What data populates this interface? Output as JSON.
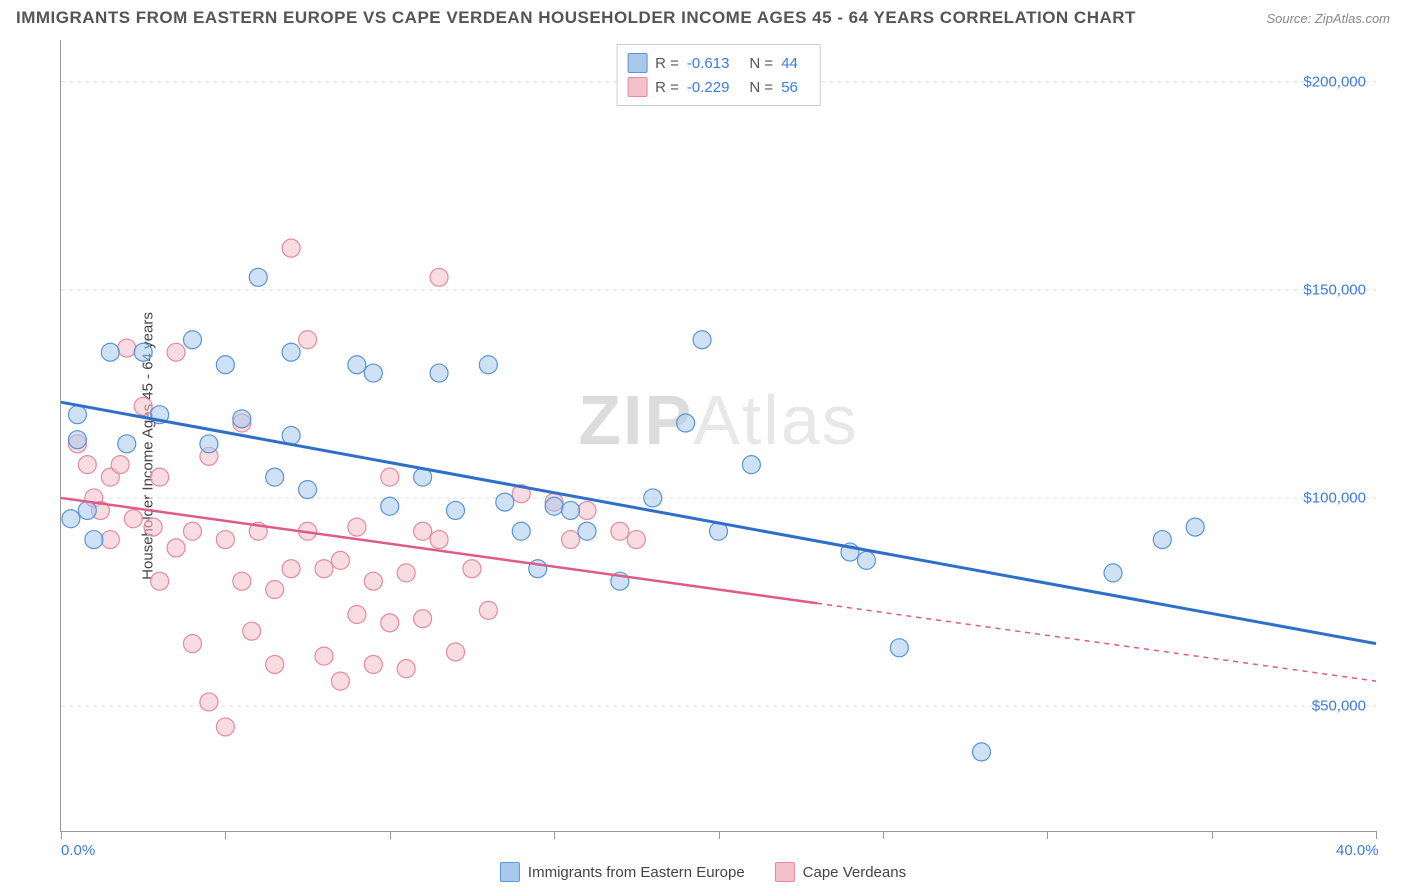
{
  "title": "IMMIGRANTS FROM EASTERN EUROPE VS CAPE VERDEAN HOUSEHOLDER INCOME AGES 45 - 64 YEARS CORRELATION CHART",
  "source": "Source: ZipAtlas.com",
  "y_axis_label": "Householder Income Ages 45 - 64 years",
  "watermark": {
    "zip": "ZIP",
    "atlas": "Atlas"
  },
  "chart": {
    "type": "scatter",
    "background_color": "#ffffff",
    "grid_color": "#dddddd",
    "axis_color": "#999999",
    "xlim": [
      0,
      40
    ],
    "ylim": [
      20000,
      210000
    ],
    "x_ticks": [
      0,
      5,
      10,
      15,
      20,
      25,
      30,
      35,
      40
    ],
    "x_tick_labels": {
      "0": "0.0%",
      "40": "40.0%"
    },
    "y_grid": [
      50000,
      100000,
      150000,
      200000
    ],
    "y_tick_labels": [
      "$50,000",
      "$100,000",
      "$150,000",
      "$200,000"
    ],
    "y_label_color": "#3b7dd8",
    "x_label_color": "#3b7dd8",
    "series": [
      {
        "name": "Immigrants from Eastern Europe",
        "fill_color": "#a8c8ec",
        "stroke_color": "#5a94d6",
        "fill_opacity": 0.55,
        "marker_radius": 9,
        "R": "-0.613",
        "N": "44",
        "trend": {
          "x1": 0,
          "y1": 123000,
          "x2": 40,
          "y2": 65000,
          "solid_until_x": 40,
          "color": "#2e6fc9",
          "width": 3
        },
        "points": [
          [
            0.5,
            120000
          ],
          [
            0.5,
            114000
          ],
          [
            0.8,
            97000
          ],
          [
            0.3,
            95000
          ],
          [
            1.0,
            90000
          ],
          [
            1.5,
            135000
          ],
          [
            2.0,
            113000
          ],
          [
            2.5,
            135000
          ],
          [
            3.0,
            120000
          ],
          [
            4.0,
            138000
          ],
          [
            4.5,
            113000
          ],
          [
            5.0,
            132000
          ],
          [
            5.5,
            119000
          ],
          [
            6.0,
            153000
          ],
          [
            6.5,
            105000
          ],
          [
            7.0,
            135000
          ],
          [
            7.0,
            115000
          ],
          [
            7.5,
            102000
          ],
          [
            9.0,
            132000
          ],
          [
            9.5,
            130000
          ],
          [
            10.0,
            98000
          ],
          [
            11.0,
            105000
          ],
          [
            11.5,
            130000
          ],
          [
            12.0,
            97000
          ],
          [
            13.0,
            132000
          ],
          [
            13.5,
            99000
          ],
          [
            14.0,
            92000
          ],
          [
            14.5,
            83000
          ],
          [
            15.0,
            98000
          ],
          [
            15.5,
            97000
          ],
          [
            16.0,
            92000
          ],
          [
            17.0,
            80000
          ],
          [
            18.0,
            100000
          ],
          [
            19.0,
            118000
          ],
          [
            19.5,
            138000
          ],
          [
            20.0,
            92000
          ],
          [
            21.0,
            108000
          ],
          [
            24.0,
            87000
          ],
          [
            24.5,
            85000
          ],
          [
            25.5,
            64000
          ],
          [
            28.0,
            39000
          ],
          [
            32.0,
            82000
          ],
          [
            33.5,
            90000
          ],
          [
            34.5,
            93000
          ]
        ]
      },
      {
        "name": "Cape Verdeans",
        "fill_color": "#f4c0cb",
        "stroke_color": "#e38ba0",
        "fill_opacity": 0.55,
        "marker_radius": 9,
        "R": "-0.229",
        "N": "56",
        "trend": {
          "x1": 0,
          "y1": 100000,
          "x2": 40,
          "y2": 56000,
          "solid_until_x": 23,
          "color": "#e05a87",
          "width": 2.5
        },
        "points": [
          [
            0.5,
            113000
          ],
          [
            0.8,
            108000
          ],
          [
            1.0,
            100000
          ],
          [
            1.2,
            97000
          ],
          [
            1.5,
            105000
          ],
          [
            1.5,
            90000
          ],
          [
            1.8,
            108000
          ],
          [
            2.0,
            136000
          ],
          [
            2.2,
            95000
          ],
          [
            2.5,
            122000
          ],
          [
            2.8,
            93000
          ],
          [
            3.0,
            105000
          ],
          [
            3.0,
            80000
          ],
          [
            3.5,
            135000
          ],
          [
            3.5,
            88000
          ],
          [
            4.0,
            92000
          ],
          [
            4.0,
            65000
          ],
          [
            4.5,
            110000
          ],
          [
            4.5,
            51000
          ],
          [
            5.0,
            90000
          ],
          [
            5.0,
            45000
          ],
          [
            5.5,
            118000
          ],
          [
            5.5,
            80000
          ],
          [
            5.8,
            68000
          ],
          [
            6.0,
            92000
          ],
          [
            6.5,
            60000
          ],
          [
            6.5,
            78000
          ],
          [
            7.0,
            160000
          ],
          [
            7.0,
            83000
          ],
          [
            7.5,
            138000
          ],
          [
            7.5,
            92000
          ],
          [
            8.0,
            62000
          ],
          [
            8.0,
            83000
          ],
          [
            8.5,
            56000
          ],
          [
            8.5,
            85000
          ],
          [
            9.0,
            72000
          ],
          [
            9.0,
            93000
          ],
          [
            9.5,
            60000
          ],
          [
            9.5,
            80000
          ],
          [
            10.0,
            105000
          ],
          [
            10.0,
            70000
          ],
          [
            10.5,
            82000
          ],
          [
            10.5,
            59000
          ],
          [
            11.0,
            92000
          ],
          [
            11.0,
            71000
          ],
          [
            11.5,
            153000
          ],
          [
            11.5,
            90000
          ],
          [
            12.0,
            63000
          ],
          [
            12.5,
            83000
          ],
          [
            13.0,
            73000
          ],
          [
            14.0,
            101000
          ],
          [
            15.0,
            99000
          ],
          [
            15.5,
            90000
          ],
          [
            16.0,
            97000
          ],
          [
            17.0,
            92000
          ],
          [
            17.5,
            90000
          ]
        ]
      }
    ]
  },
  "legend_stats": {
    "rows": [
      {
        "swatch_fill": "#a8c8ec",
        "swatch_stroke": "#5a94d6",
        "r_label": "R =",
        "r_val": "-0.613",
        "n_label": "N =",
        "n_val": "44"
      },
      {
        "swatch_fill": "#f4c0cb",
        "swatch_stroke": "#e38ba0",
        "r_label": "R =",
        "r_val": "-0.229",
        "n_label": "N =",
        "n_val": "56"
      }
    ]
  },
  "bottom_legend": [
    {
      "swatch_fill": "#a8c8ec",
      "swatch_stroke": "#5a94d6",
      "label": "Immigrants from Eastern Europe"
    },
    {
      "swatch_fill": "#f4c0cb",
      "swatch_stroke": "#e38ba0",
      "label": "Cape Verdeans"
    }
  ]
}
